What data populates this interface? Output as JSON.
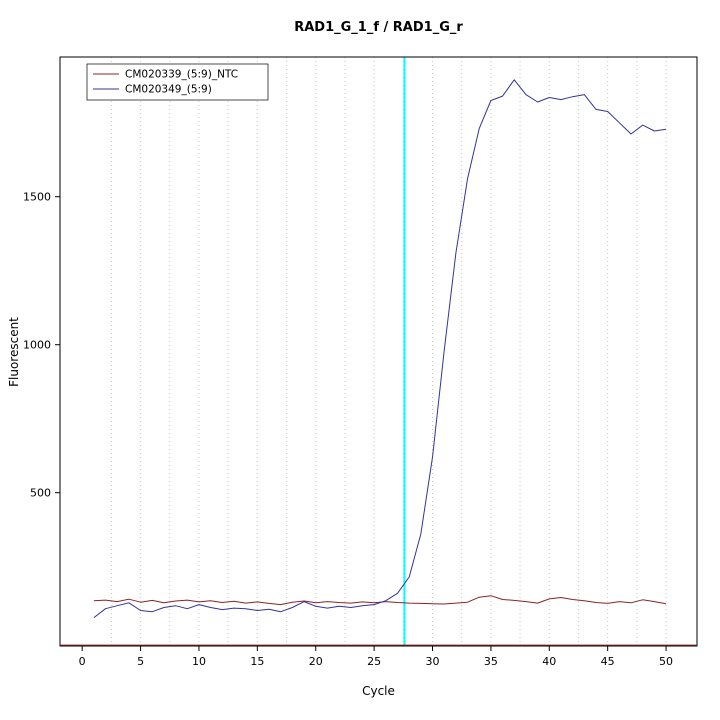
{
  "chart_data": {
    "type": "line",
    "title": "RAD1_G_1_f / RAD1_G_r",
    "xlabel": "Cycle",
    "ylabel": "Fluorescent",
    "xlim": [
      -1.9,
      52.65
    ],
    "ylim": [
      -18,
      1972
    ],
    "x_ticks": [
      0,
      5,
      10,
      15,
      20,
      25,
      30,
      35,
      40,
      45,
      50
    ],
    "y_ticks": [
      500,
      1000,
      1500
    ],
    "x_grid_step": 2.5,
    "grid_color": "#c8c8c8",
    "grid_on": true,
    "legend_position": "top-left",
    "threshold_line": {
      "x": 27.6,
      "color": "#00ffff"
    },
    "bottom_line": {
      "value": -15,
      "color": "#8b2323"
    },
    "x": [
      1,
      2,
      3,
      4,
      5,
      6,
      7,
      8,
      9,
      10,
      11,
      12,
      13,
      14,
      15,
      16,
      17,
      18,
      19,
      20,
      21,
      22,
      23,
      24,
      25,
      26,
      27,
      28,
      29,
      30,
      31,
      32,
      33,
      34,
      35,
      36,
      37,
      38,
      39,
      40,
      41,
      42,
      43,
      44,
      45,
      46,
      47,
      48,
      49,
      50
    ],
    "series": [
      {
        "name": "CM020339_(5:9)_NTC",
        "color": "#8b2323",
        "values": [
          135,
          137,
          132,
          140,
          130,
          136,
          128,
          134,
          137,
          131,
          135,
          129,
          133,
          127,
          131,
          126,
          122,
          130,
          134,
          128,
          132,
          129,
          127,
          131,
          128,
          132,
          129,
          127,
          126,
          125,
          124,
          127,
          130,
          147,
          152,
          139,
          136,
          132,
          127,
          141,
          146,
          139,
          135,
          129,
          126,
          132,
          128,
          138,
          132,
          125
        ]
      },
      {
        "name": "CM020349_(5:9)",
        "color": "#333399",
        "values": [
          78,
          108,
          118,
          128,
          102,
          98,
          112,
          118,
          108,
          122,
          112,
          105,
          110,
          108,
          102,
          106,
          98,
          112,
          132,
          116,
          110,
          116,
          112,
          118,
          122,
          135,
          160,
          215,
          360,
          620,
          980,
          1310,
          1560,
          1730,
          1825,
          1840,
          1895,
          1845,
          1820,
          1835,
          1828,
          1838,
          1845,
          1795,
          1788,
          1750,
          1712,
          1742,
          1722,
          1728
        ]
      }
    ]
  }
}
